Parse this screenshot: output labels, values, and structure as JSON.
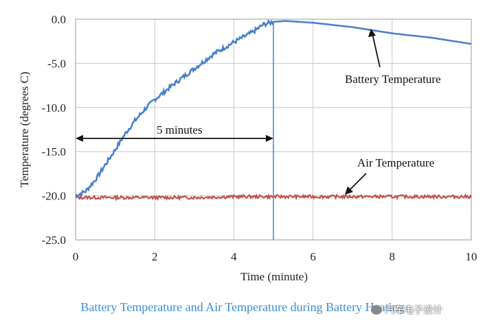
{
  "chart_data": {
    "type": "line",
    "xlabel": "Time (minute)",
    "ylabel": "Temperature (degrees C)",
    "xlim": [
      0,
      10
    ],
    "ylim": [
      -25,
      0
    ],
    "xticks": [
      "0",
      "2",
      "4",
      "6",
      "8",
      "10"
    ],
    "yticks": [
      "0.0",
      "-5.0",
      "-10.0",
      "-15.0",
      "-20.0",
      "-25.0"
    ],
    "grid": true,
    "series": [
      {
        "name": "Battery Temperature",
        "color": "#4a7fcb",
        "x": [
          0,
          0.25,
          0.5,
          0.75,
          1.0,
          1.25,
          1.5,
          1.75,
          2.0,
          2.5,
          3.0,
          3.5,
          4.0,
          4.5,
          4.75,
          5.0,
          5.3,
          6.0,
          7.0,
          8.0,
          9.0,
          10.0
        ],
        "y": [
          -20.0,
          -19.5,
          -18.2,
          -16.5,
          -14.8,
          -13.0,
          -11.5,
          -10.2,
          -9.1,
          -7.3,
          -5.6,
          -3.9,
          -2.6,
          -1.4,
          -0.6,
          -0.3,
          -0.2,
          -0.4,
          -0.9,
          -1.6,
          -2.1,
          -2.8
        ]
      },
      {
        "name": "Air Temperature",
        "color": "#c0504d",
        "x": [
          0,
          1,
          2,
          3,
          4,
          5,
          6,
          7,
          8,
          9,
          10
        ],
        "y": [
          -20.2,
          -20.2,
          -20.2,
          -20.2,
          -20.1,
          -20.1,
          -20.1,
          -20.1,
          -20.1,
          -20.1,
          -20.1
        ]
      }
    ],
    "annotations": {
      "interval_label": "5 minutes",
      "interval_x": [
        0,
        5
      ],
      "interval_y": -13.5,
      "vline_x": 5,
      "battery_label": "Battery Temperature",
      "air_label": "Air Temperature"
    },
    "caption": "Battery Temperature and Air Temperature during Battery Heating",
    "watermark": "汽车电子设计"
  }
}
